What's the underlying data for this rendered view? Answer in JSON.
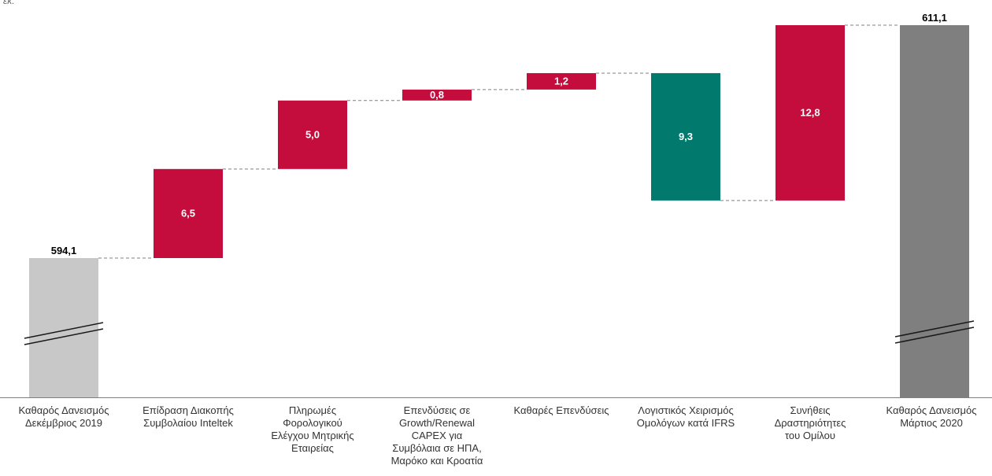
{
  "chart_data": {
    "type": "waterfall",
    "unit_label": "εκ.",
    "categories": [
      "Καθαρός Δανεισμός\nΔεκέμβριος 2019",
      "Επίδραση Διακοπής\nΣυμβολαίου Inteltek",
      "Πληρωμές\nΦορολογικού\nΕλέγχου Μητρικής\nΕταιρείας",
      "Επενδύσεις σε\nGrowth/Renewal\nCAPEX για\nΣυμβόλαια σε ΗΠΑ,\nΜαρόκο και Κροατία",
      "Καθαρές Επενδύσεις",
      "Λογιστικός Χειρισμός\nΟμολόγων κατά IFRS",
      "Συνήθεις\nΔραστηριότητες\nτου Ομίλου",
      "Καθαρός Δανεισμός\nΜάρτιος 2020"
    ],
    "bars": [
      {
        "kind": "total",
        "value": 594.1,
        "label": "594,1"
      },
      {
        "kind": "increase",
        "value": 6.5,
        "label": "6,5"
      },
      {
        "kind": "increase",
        "value": 5.0,
        "label": "5,0"
      },
      {
        "kind": "increase",
        "value": 0.8,
        "label": "0,8"
      },
      {
        "kind": "increase",
        "value": 1.2,
        "label": "1,2"
      },
      {
        "kind": "decrease",
        "value": 9.3,
        "label": "9,3"
      },
      {
        "kind": "increase",
        "value": 12.8,
        "label": "12,8"
      },
      {
        "kind": "total",
        "value": 611.1,
        "label": "611,1"
      }
    ],
    "axis_break": true,
    "colors": {
      "start_total": "#c8c8c8",
      "end_total": "#7f7f7f",
      "increase": "#c40d3c",
      "decrease": "#017a6d",
      "connector": "#808080",
      "axis": "#7f7f7f"
    }
  }
}
